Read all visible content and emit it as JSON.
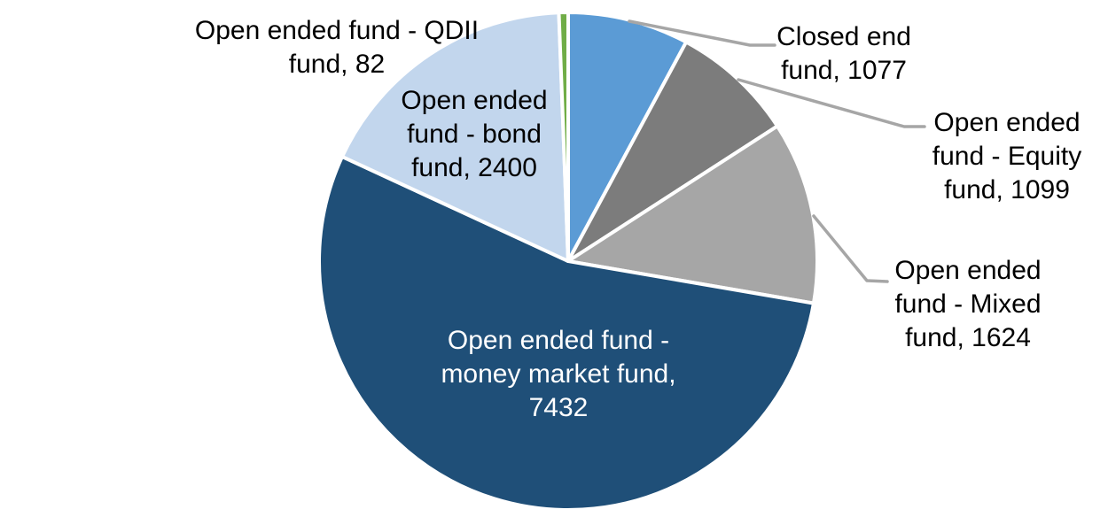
{
  "chart_data": {
    "type": "pie",
    "title": "",
    "legend_position": "none",
    "start_angle_deg": 0,
    "direction": "clockwise",
    "total": 13714,
    "slices": [
      {
        "id": "closed_end",
        "label": "Closed end fund",
        "value": 1077,
        "pct": 7.9,
        "color": "#5B9BD5"
      },
      {
        "id": "equity",
        "label": "Open ended fund - Equity fund",
        "value": 1099,
        "pct": 8.0,
        "color": "#7C7C7C"
      },
      {
        "id": "mixed",
        "label": "Open ended fund - Mixed fund",
        "value": 1624,
        "pct": 11.8,
        "color": "#A6A6A6"
      },
      {
        "id": "money_market",
        "label": "Open ended fund - money market fund",
        "value": 7432,
        "pct": 54.2,
        "color": "#1F4F78"
      },
      {
        "id": "bond",
        "label": "Open ended fund - bond fund",
        "value": 2400,
        "pct": 17.5,
        "color": "#C2D6ED"
      },
      {
        "id": "qdii",
        "label": "Open ended fund - QDII fund",
        "value": 82,
        "pct": 0.6,
        "color": "#70AD47"
      }
    ]
  },
  "callouts": {
    "qdii": {
      "lines": [
        "Open ended fund - QDII",
        "fund, 82"
      ]
    },
    "bond": {
      "lines": [
        "Open ended",
        "fund - bond",
        "fund, 2400"
      ]
    },
    "closed": {
      "lines": [
        "Closed end",
        "fund, 1077"
      ]
    },
    "equity": {
      "lines": [
        "Open ended",
        "fund - Equity",
        "fund, 1099"
      ]
    },
    "mixed": {
      "lines": [
        "Open ended",
        "fund - Mixed",
        "fund, 1624"
      ]
    },
    "money": {
      "lines": [
        "Open ended fund -",
        "money market fund,",
        "7432"
      ]
    }
  },
  "colors": {
    "background": "#FFFFFF",
    "slice_border": "#FFFFFF",
    "leader_line": "#A6A6A6",
    "label_text": "#000000",
    "inside_label_text": "#FFFFFF"
  }
}
